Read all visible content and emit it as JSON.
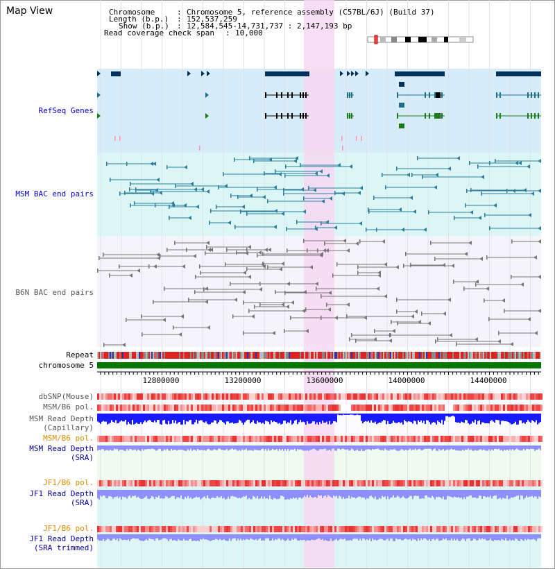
{
  "title": "Map View",
  "info": {
    "chromosome_label": "Chromosome",
    "chromosome_value": "Chromosome 5, reference assembly (C57BL/6J) (Build 37)",
    "length_label": "Length (b.p.)",
    "length_value": "152,537,259",
    "show_label": "Show (b.p.)",
    "show_value": "12,584,545-14,731,737 : 2,147,193 bp",
    "coverage_label": "Read coverage check span",
    "coverage_value": "10,000"
  },
  "tracks": {
    "refseq": "RefSeq Genes",
    "msm_bac": "MSM BAC end pairs",
    "b6n_bac": "B6N BAC end pairs",
    "repeat": "Repeat",
    "chromosome": "chromosome 5",
    "dbsnp": "dbSNP(Mouse)",
    "msm_b6_pol_1": "MSM/B6 pol.",
    "msm_read_depth_cap_1": "MSM Read Depth",
    "msm_read_depth_cap_2": "(Capillary)",
    "msm_b6_pol_2": "MSM/B6 pol.",
    "msm_read_depth_sra_1": "MSM Read Depth",
    "msm_read_depth_sra_2": "(SRA)",
    "jf1_b6_pol_1": "JF1/B6 pol.",
    "jf1_read_depth_sra_1": "JF1 Read Depth",
    "jf1_read_depth_sra_2": "(SRA)",
    "jf1_b6_pol_2": "JF1/B6 pol.",
    "jf1_read_depth_trim_1": "JF1 Read Depth",
    "jf1_read_depth_trim_2": "(SRA trimmed)"
  },
  "axis": {
    "ticks": [
      "12800000",
      "13200000",
      "13600000",
      "14000000",
      "14400000"
    ]
  },
  "colors": {
    "refseq_bg": "#d6ecf8",
    "msm_bg": "#dcf6f6",
    "b6n_bg": "#f4f4fa",
    "highlight": "#f7d8f2",
    "gene_dark": "#00305c",
    "gene_teal": "#1f6f8b",
    "gene_green": "#1a7a1a",
    "bac_teal": "#2a7f9f",
    "bac_grey": "#777777",
    "chromosome_green": "#007700",
    "depth_blue": "#1a1aff",
    "depth_light": "#8f8fff"
  }
}
